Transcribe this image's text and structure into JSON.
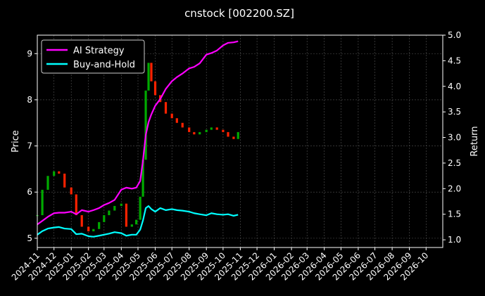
{
  "chart_data": {
    "type": "line",
    "title": "cnstock [002200.SZ]",
    "ylabel_left": "Price",
    "ylabel_right": "Return",
    "xlabel": "",
    "grid": true,
    "legend_position": "upper-left",
    "xlim": [
      "2024-11-01",
      "2026-10-31"
    ],
    "ylim_left": [
      4.8,
      9.4
    ],
    "ylim_right": [
      0.85,
      5.0
    ],
    "x_ticks": [
      "2024-11",
      "2024-12",
      "2025-01",
      "2025-02",
      "2025-03",
      "2025-04",
      "2025-05",
      "2025-06",
      "2025-07",
      "2025-08",
      "2025-09",
      "2025-10",
      "2025-11",
      "2025-12",
      "2026-01",
      "2026-02",
      "2026-03",
      "2026-04",
      "2026-05",
      "2026-06",
      "2026-07",
      "2026-08",
      "2026-09",
      "2026-10"
    ],
    "y_ticks_left": [
      5,
      6,
      7,
      8,
      9
    ],
    "y_ticks_right": [
      1.0,
      1.5,
      2.0,
      2.5,
      3.0,
      3.5,
      4.0,
      4.5,
      5.0
    ],
    "tick_labels_right": [
      "1.0",
      "1.5",
      "2.0",
      "2.5",
      "3.0",
      "3.5",
      "4.0",
      "4.5",
      "5.0"
    ],
    "series": [
      {
        "name": "AI Strategy",
        "axis": "right",
        "color": "#ff00ff",
        "x": [
          "2024-11-01",
          "2024-11-10",
          "2024-11-20",
          "2024-12-01",
          "2024-12-10",
          "2024-12-20",
          "2025-01-01",
          "2025-01-10",
          "2025-01-20",
          "2025-02-01",
          "2025-02-10",
          "2025-02-20",
          "2025-03-01",
          "2025-03-10",
          "2025-03-20",
          "2025-04-01",
          "2025-04-10",
          "2025-04-20",
          "2025-04-28",
          "2025-05-05",
          "2025-05-10",
          "2025-05-15",
          "2025-05-20",
          "2025-05-25",
          "2025-06-01",
          "2025-06-10",
          "2025-06-20",
          "2025-07-01",
          "2025-07-10",
          "2025-07-20",
          "2025-08-01",
          "2025-08-10",
          "2025-08-20",
          "2025-09-01",
          "2025-09-10",
          "2025-09-20",
          "2025-10-01",
          "2025-10-10",
          "2025-10-20",
          "2025-10-28"
        ],
        "values": [
          1.3,
          1.37,
          1.45,
          1.52,
          1.53,
          1.53,
          1.55,
          1.5,
          1.58,
          1.55,
          1.58,
          1.62,
          1.68,
          1.72,
          1.78,
          1.98,
          2.02,
          2.0,
          2.02,
          2.15,
          2.55,
          3.05,
          3.3,
          3.45,
          3.62,
          3.75,
          3.95,
          4.1,
          4.18,
          4.25,
          4.35,
          4.38,
          4.45,
          4.62,
          4.65,
          4.7,
          4.8,
          4.85,
          4.86,
          4.88
        ]
      },
      {
        "name": "Buy-and-Hold",
        "axis": "right",
        "color": "#00ffff",
        "x": [
          "2024-11-01",
          "2024-11-10",
          "2024-11-20",
          "2024-12-01",
          "2024-12-10",
          "2024-12-20",
          "2025-01-01",
          "2025-01-10",
          "2025-01-20",
          "2025-02-01",
          "2025-02-10",
          "2025-02-20",
          "2025-03-01",
          "2025-03-10",
          "2025-03-20",
          "2025-04-01",
          "2025-04-10",
          "2025-04-20",
          "2025-04-28",
          "2025-05-05",
          "2025-05-10",
          "2025-05-15",
          "2025-05-20",
          "2025-05-25",
          "2025-06-01",
          "2025-06-10",
          "2025-06-20",
          "2025-07-01",
          "2025-07-10",
          "2025-07-20",
          "2025-08-01",
          "2025-08-10",
          "2025-08-20",
          "2025-09-01",
          "2025-09-10",
          "2025-09-20",
          "2025-10-01",
          "2025-10-10",
          "2025-10-20",
          "2025-10-28"
        ],
        "values": [
          1.1,
          1.17,
          1.22,
          1.24,
          1.25,
          1.22,
          1.21,
          1.11,
          1.12,
          1.07,
          1.06,
          1.08,
          1.1,
          1.12,
          1.15,
          1.13,
          1.08,
          1.1,
          1.1,
          1.2,
          1.38,
          1.62,
          1.66,
          1.6,
          1.55,
          1.62,
          1.58,
          1.6,
          1.58,
          1.57,
          1.55,
          1.52,
          1.5,
          1.48,
          1.52,
          1.5,
          1.49,
          1.5,
          1.47,
          1.49
        ]
      }
    ],
    "price_series": {
      "axis": "left",
      "note_colors": {
        "up": "#00aa00",
        "down": "#ff2200"
      },
      "x": [
        "2024-11-01",
        "2024-11-10",
        "2024-11-20",
        "2024-12-01",
        "2024-12-10",
        "2024-12-20",
        "2025-01-01",
        "2025-01-10",
        "2025-01-20",
        "2025-02-01",
        "2025-02-10",
        "2025-02-20",
        "2025-03-01",
        "2025-03-10",
        "2025-03-20",
        "2025-04-01",
        "2025-04-10",
        "2025-04-20",
        "2025-04-28",
        "2025-05-05",
        "2025-05-10",
        "2025-05-15",
        "2025-05-20",
        "2025-05-25",
        "2025-06-01",
        "2025-06-10",
        "2025-06-20",
        "2025-07-01",
        "2025-07-10",
        "2025-07-20",
        "2025-08-01",
        "2025-08-10",
        "2025-08-20",
        "2025-09-01",
        "2025-09-10",
        "2025-09-20",
        "2025-10-01",
        "2025-10-10",
        "2025-10-20",
        "2025-10-28"
      ],
      "close": [
        5.5,
        6.05,
        6.35,
        6.45,
        6.4,
        6.1,
        5.95,
        5.5,
        5.25,
        5.15,
        5.2,
        5.35,
        5.5,
        5.6,
        5.7,
        5.75,
        5.25,
        5.3,
        5.4,
        5.9,
        6.7,
        8.2,
        8.8,
        8.4,
        8.1,
        7.95,
        7.7,
        7.6,
        7.5,
        7.4,
        7.3,
        7.25,
        7.3,
        7.35,
        7.4,
        7.35,
        7.3,
        7.2,
        7.15,
        7.3
      ]
    }
  },
  "legend": {
    "items": [
      {
        "label": "AI Strategy",
        "color": "#ff00ff"
      },
      {
        "label": "Buy-and-Hold",
        "color": "#00ffff"
      }
    ]
  }
}
